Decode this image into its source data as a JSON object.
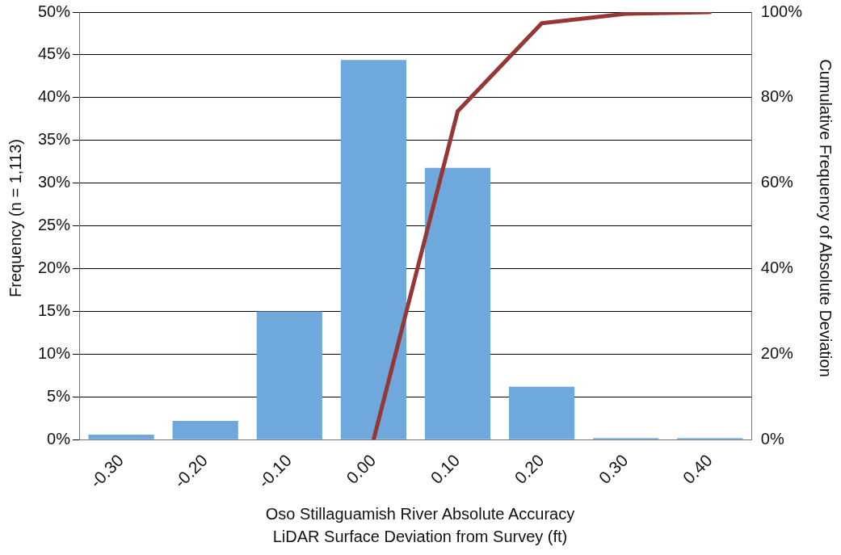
{
  "chart_data": {
    "type": "bar",
    "xlabel": "Oso Stillaguamish River Absolute Accuracy\nLiDAR Surface Deviation from Survey (ft)",
    "ylabel": "Frequency (n = 1,113)",
    "y2label": "Cumulative Frequency of Absolute Deviation",
    "categories": [
      "-0.30",
      "-0.20",
      "-0.10",
      "0.00",
      "0.10",
      "0.20",
      "0.30",
      "0.40"
    ],
    "series": [
      {
        "color": "#6fa8dc",
        "values": [
          0.6,
          2.2,
          15,
          44.4,
          31.8,
          6.2,
          0.2,
          0.2
        ]
      },
      {
        "type": "line",
        "axis": "y2",
        "color": "#953735",
        "values": [
          null,
          null,
          null,
          0,
          76.8,
          97.4,
          99.6,
          100
        ]
      }
    ],
    "ylim": [
      0,
      50
    ],
    "yticks": [
      {
        "value": 0,
        "label": "0%"
      },
      {
        "value": 5,
        "label": "5%"
      },
      {
        "value": 10,
        "label": "10%"
      },
      {
        "value": 15,
        "label": "15%"
      },
      {
        "value": 20,
        "label": "20%"
      },
      {
        "value": 25,
        "label": "25%"
      },
      {
        "value": 30,
        "label": "30%"
      },
      {
        "value": 35,
        "label": "35%"
      },
      {
        "value": 40,
        "label": "40%"
      },
      {
        "value": 45,
        "label": "45%"
      },
      {
        "value": 50,
        "label": "50%"
      }
    ],
    "y2lim": [
      0,
      100
    ],
    "y2ticks": [
      {
        "value": 0,
        "label": "0%"
      },
      {
        "value": 20,
        "label": "20%"
      },
      {
        "value": 40,
        "label": "40%"
      },
      {
        "value": 60,
        "label": "60%"
      },
      {
        "value": 80,
        "label": "80%"
      },
      {
        "value": 100,
        "label": "100%"
      }
    ],
    "grid": "y",
    "legend": false,
    "marker": "none",
    "line_style": "solid"
  }
}
